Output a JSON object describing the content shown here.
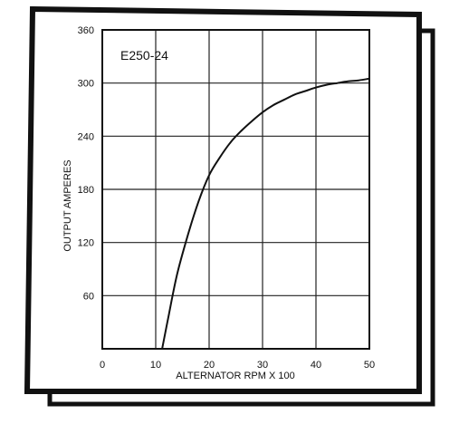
{
  "chart_data": {
    "type": "line",
    "title": "E250-24",
    "xlabel": "ALTERNATOR RPM X 100",
    "ylabel": "OUTPUT AMPERES",
    "xlim": [
      0,
      50
    ],
    "ylim": [
      0,
      360
    ],
    "x_ticks": [
      0,
      10,
      20,
      30,
      40,
      50
    ],
    "y_ticks": [
      60,
      120,
      180,
      240,
      300,
      360
    ],
    "grid": true,
    "series": [
      {
        "x": [
          11.2,
          12.5,
          14,
          16,
          18,
          20,
          22,
          24,
          26,
          28,
          30,
          32,
          34,
          36,
          38,
          40,
          42,
          44,
          46,
          48,
          50
        ],
        "values": [
          0,
          40,
          84,
          128,
          166,
          196,
          216,
          233,
          246,
          257,
          267,
          275,
          281,
          287,
          291,
          295,
          298,
          300,
          302,
          303,
          305
        ]
      }
    ]
  }
}
